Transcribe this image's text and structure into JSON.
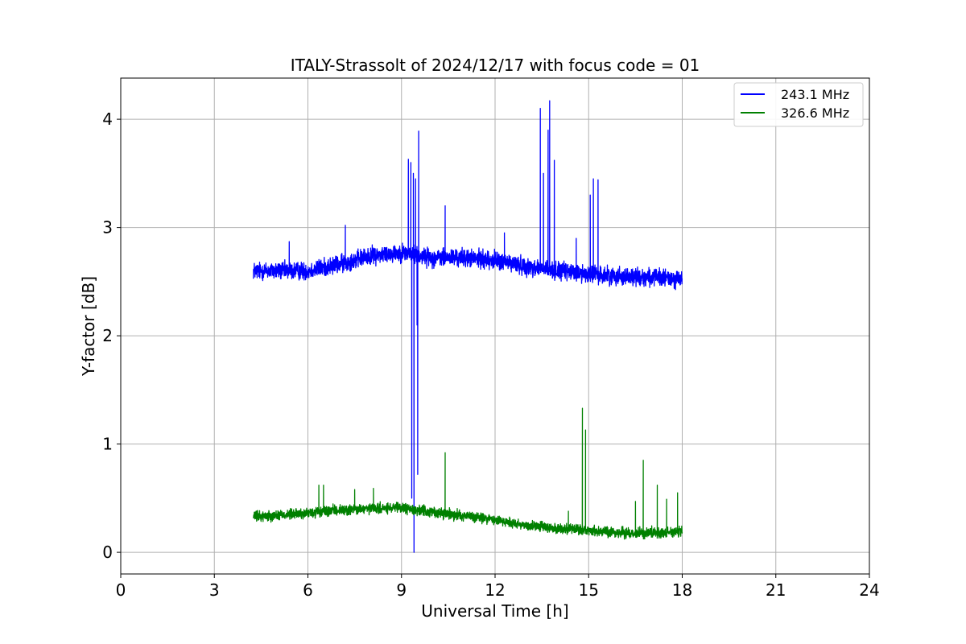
{
  "chart_data": {
    "type": "line",
    "title": "ITALY-Strassolt of 2024/12/17 with focus code = 01",
    "xlabel": "Universal Time [h]",
    "ylabel": "Y-factor [dB]",
    "xlim": [
      0,
      24
    ],
    "ylim": [
      -0.2,
      4.38
    ],
    "xticks": [
      0,
      3,
      6,
      9,
      12,
      15,
      18,
      21,
      24
    ],
    "yticks": [
      0,
      1,
      2,
      3,
      4
    ],
    "grid": true,
    "legend_position": "top-right",
    "series": [
      {
        "name": "243.1 MHz",
        "color": "#0000ff",
        "x_range": [
          4.25,
          18.0
        ],
        "baseline": [
          [
            4.25,
            2.6
          ],
          [
            6.0,
            2.6
          ],
          [
            7.0,
            2.66
          ],
          [
            8.0,
            2.74
          ],
          [
            9.0,
            2.77
          ],
          [
            10.0,
            2.72
          ],
          [
            11.0,
            2.72
          ],
          [
            12.0,
            2.7
          ],
          [
            13.0,
            2.64
          ],
          [
            14.0,
            2.6
          ],
          [
            15.0,
            2.57
          ],
          [
            16.0,
            2.55
          ],
          [
            17.0,
            2.54
          ],
          [
            18.0,
            2.52
          ]
        ],
        "noise_band": 0.12,
        "spikes": [
          [
            5.4,
            2.87
          ],
          [
            7.2,
            3.02
          ],
          [
            9.22,
            3.63
          ],
          [
            9.3,
            3.6
          ],
          [
            9.33,
            0.5
          ],
          [
            9.38,
            3.5
          ],
          [
            9.4,
            0.0
          ],
          [
            9.45,
            3.45
          ],
          [
            9.5,
            2.1
          ],
          [
            9.52,
            0.72
          ],
          [
            9.55,
            3.89
          ],
          [
            10.4,
            3.2
          ],
          [
            12.3,
            2.95
          ],
          [
            13.45,
            4.1
          ],
          [
            13.55,
            3.5
          ],
          [
            13.7,
            3.9
          ],
          [
            13.75,
            4.17
          ],
          [
            13.9,
            3.62
          ],
          [
            14.6,
            2.9
          ],
          [
            15.05,
            3.3
          ],
          [
            15.15,
            3.45
          ],
          [
            15.3,
            3.44
          ]
        ]
      },
      {
        "name": "326.6 MHz",
        "color": "#008000",
        "x_range": [
          4.25,
          18.0
        ],
        "baseline": [
          [
            4.25,
            0.33
          ],
          [
            6.0,
            0.36
          ],
          [
            7.0,
            0.39
          ],
          [
            8.0,
            0.4
          ],
          [
            9.0,
            0.41
          ],
          [
            10.0,
            0.37
          ],
          [
            11.0,
            0.34
          ],
          [
            12.0,
            0.3
          ],
          [
            13.0,
            0.25
          ],
          [
            14.0,
            0.22
          ],
          [
            15.0,
            0.2
          ],
          [
            16.0,
            0.18
          ],
          [
            17.0,
            0.18
          ],
          [
            18.0,
            0.19
          ]
        ],
        "noise_band": 0.07,
        "spikes": [
          [
            6.35,
            0.62
          ],
          [
            6.5,
            0.62
          ],
          [
            7.5,
            0.58
          ],
          [
            8.1,
            0.59
          ],
          [
            10.4,
            0.92
          ],
          [
            14.35,
            0.38
          ],
          [
            14.8,
            1.33
          ],
          [
            14.9,
            1.13
          ],
          [
            16.5,
            0.47
          ],
          [
            16.75,
            0.85
          ],
          [
            17.2,
            0.62
          ],
          [
            17.5,
            0.49
          ],
          [
            17.85,
            0.55
          ]
        ]
      }
    ]
  }
}
